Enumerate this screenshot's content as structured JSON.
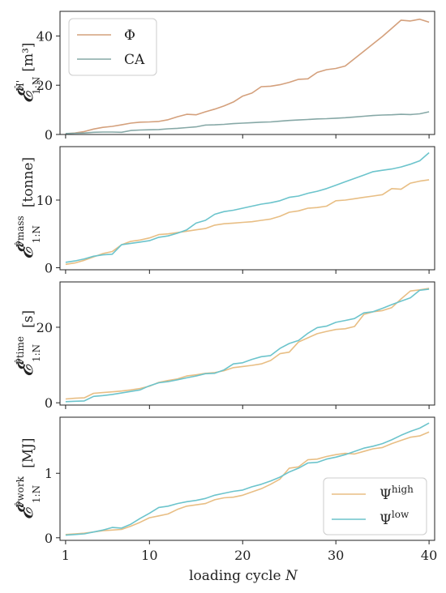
{
  "chart_data": [
    {
      "type": "line",
      "ylabel": "𝓔^{Ĥ'}_{1:N} [m³]",
      "ylabel_symbol": "𝓔",
      "ylabel_superscript": "Ĥ'",
      "ylabel_subscript": "1:N",
      "ylabel_unit": "[m³]",
      "xlabel": "",
      "xlim": [
        0.4,
        40.6
      ],
      "ylim": [
        0,
        50
      ],
      "yticks": [
        0,
        20,
        40
      ],
      "legend_position": "top-left",
      "grid": false,
      "series": [
        {
          "name": "Φ",
          "color": "#d4a07c",
          "x": [
            1,
            2,
            3,
            4,
            5,
            6,
            7,
            8,
            9,
            10,
            11,
            12,
            13,
            14,
            15,
            16,
            17,
            18,
            19,
            20,
            21,
            22,
            23,
            24,
            25,
            26,
            27,
            28,
            29,
            30,
            31,
            32,
            33,
            34,
            35,
            36,
            37,
            38,
            39,
            40
          ],
          "values": [
            0.3,
            0.6,
            1.2,
            2.2,
            2.9,
            3.3,
            3.9,
            4.6,
            5.0,
            5.1,
            5.3,
            6.0,
            7.2,
            8.2,
            8.0,
            9.2,
            10.3,
            11.6,
            13.2,
            15.6,
            16.8,
            19.4,
            19.6,
            20.2,
            21.2,
            22.4,
            22.6,
            25.2,
            26.3,
            26.8,
            27.8,
            30.8,
            33.8,
            36.8,
            39.8,
            43.1,
            46.4,
            46.1,
            46.8,
            45.6
          ]
        },
        {
          "name": "CA",
          "color": "#86a8a6",
          "x": [
            1,
            2,
            3,
            4,
            5,
            6,
            7,
            8,
            9,
            10,
            11,
            12,
            13,
            14,
            15,
            16,
            17,
            18,
            19,
            20,
            21,
            22,
            23,
            24,
            25,
            26,
            27,
            28,
            29,
            30,
            31,
            32,
            33,
            34,
            35,
            36,
            37,
            38,
            39,
            40
          ],
          "values": [
            0.4,
            0.5,
            0.6,
            0.9,
            1.0,
            1.0,
            0.9,
            1.6,
            1.8,
            1.9,
            2.0,
            2.3,
            2.5,
            2.8,
            3.1,
            3.8,
            3.9,
            4.1,
            4.4,
            4.6,
            4.8,
            5.0,
            5.1,
            5.4,
            5.7,
            5.9,
            6.1,
            6.3,
            6.4,
            6.6,
            6.8,
            7.1,
            7.4,
            7.7,
            7.9,
            8.0,
            8.2,
            8.1,
            8.4,
            9.2
          ]
        }
      ]
    },
    {
      "type": "line",
      "ylabel": "𝓔^{P̂mass}_{1:N} [tonne]",
      "ylabel_symbol": "𝓔",
      "ylabel_superscript": "P̂mass",
      "ylabel_subscript": "1:N",
      "ylabel_unit": "[tonne]",
      "xlabel": "",
      "xlim": [
        0.4,
        40.6
      ],
      "ylim": [
        -0.3,
        17.9
      ],
      "yticks": [
        0,
        10
      ],
      "grid": false,
      "series": [
        {
          "name": "Ψ^high",
          "color": "#e8be84",
          "x": [
            1,
            2,
            3,
            4,
            5,
            6,
            7,
            8,
            9,
            10,
            11,
            12,
            13,
            14,
            15,
            16,
            17,
            18,
            19,
            20,
            21,
            22,
            23,
            24,
            25,
            26,
            27,
            28,
            29,
            30,
            31,
            32,
            33,
            34,
            35,
            36,
            37,
            38,
            39,
            40
          ],
          "values": [
            0.5,
            0.7,
            1.1,
            1.6,
            2.1,
            2.4,
            3.4,
            3.9,
            4.1,
            4.4,
            4.9,
            5.0,
            5.2,
            5.4,
            5.6,
            5.8,
            6.3,
            6.5,
            6.6,
            6.7,
            6.8,
            7.0,
            7.2,
            7.6,
            8.2,
            8.4,
            8.8,
            8.9,
            9.1,
            9.9,
            10.0,
            10.2,
            10.4,
            10.6,
            10.8,
            11.7,
            11.6,
            12.5,
            12.8,
            13.0
          ]
        },
        {
          "name": "Ψ^low",
          "color": "#6cc4cc",
          "x": [
            1,
            2,
            3,
            4,
            5,
            6,
            7,
            8,
            9,
            10,
            11,
            12,
            13,
            14,
            15,
            16,
            17,
            18,
            19,
            20,
            21,
            22,
            23,
            24,
            25,
            26,
            27,
            28,
            29,
            30,
            31,
            32,
            33,
            34,
            35,
            36,
            37,
            38,
            39,
            40
          ],
          "values": [
            0.8,
            1.0,
            1.3,
            1.7,
            1.9,
            2.0,
            3.4,
            3.6,
            3.8,
            4.0,
            4.5,
            4.7,
            5.1,
            5.6,
            6.6,
            7.0,
            7.9,
            8.3,
            8.5,
            8.8,
            9.1,
            9.4,
            9.6,
            9.9,
            10.4,
            10.6,
            11.0,
            11.3,
            11.7,
            12.2,
            12.7,
            13.2,
            13.7,
            14.2,
            14.4,
            14.6,
            14.9,
            15.3,
            15.8,
            17.0
          ]
        }
      ]
    },
    {
      "type": "line",
      "ylabel": "𝓔^{P̂time}_{1:N} [s]",
      "ylabel_symbol": "𝓔",
      "ylabel_superscript": "P̂time",
      "ylabel_subscript": "1:N",
      "ylabel_unit": "[s]",
      "xlabel": "",
      "xlim": [
        0.4,
        40.6
      ],
      "ylim": [
        -0.6,
        32.0
      ],
      "yticks": [
        0,
        20
      ],
      "grid": false,
      "series": [
        {
          "name": "Ψ^high",
          "color": "#e8be84",
          "x": [
            1,
            2,
            3,
            4,
            5,
            6,
            7,
            8,
            9,
            10,
            11,
            12,
            13,
            14,
            15,
            16,
            17,
            18,
            19,
            20,
            21,
            22,
            23,
            24,
            25,
            26,
            27,
            28,
            29,
            30,
            31,
            32,
            33,
            34,
            35,
            36,
            37,
            38,
            39,
            40
          ],
          "values": [
            1.0,
            1.2,
            1.3,
            2.5,
            2.7,
            2.9,
            3.1,
            3.4,
            3.8,
            4.4,
            5.4,
            5.9,
            6.3,
            7.1,
            7.4,
            7.8,
            8.0,
            8.5,
            9.3,
            9.6,
            9.9,
            10.3,
            11.2,
            13.0,
            13.4,
            16.1,
            17.2,
            18.3,
            18.9,
            19.4,
            19.6,
            20.2,
            23.4,
            24.1,
            24.4,
            25.2,
            27.5,
            29.6,
            29.9,
            30.3
          ]
        },
        {
          "name": "Ψ^low",
          "color": "#6cc4cc",
          "x": [
            1,
            2,
            3,
            4,
            5,
            6,
            7,
            8,
            9,
            10,
            11,
            12,
            13,
            14,
            15,
            16,
            17,
            18,
            19,
            20,
            21,
            22,
            23,
            24,
            25,
            26,
            27,
            28,
            29,
            30,
            31,
            32,
            33,
            34,
            35,
            36,
            37,
            38,
            39,
            40
          ],
          "values": [
            0.3,
            0.4,
            0.5,
            1.7,
            1.9,
            2.2,
            2.6,
            3.0,
            3.4,
            4.5,
            5.3,
            5.6,
            6.1,
            6.6,
            7.1,
            7.7,
            7.8,
            8.7,
            10.3,
            10.6,
            11.5,
            12.2,
            12.5,
            14.4,
            15.7,
            16.5,
            18.4,
            19.9,
            20.3,
            21.3,
            21.8,
            22.3,
            23.8,
            24.1,
            25.0,
            26.0,
            26.9,
            27.8,
            29.8,
            30.1
          ]
        }
      ]
    },
    {
      "type": "line",
      "ylabel": "𝓔^{P̂work}_{1:N} [MJ]",
      "ylabel_symbol": "𝓔",
      "ylabel_superscript": "P̂work",
      "ylabel_subscript": "1:N",
      "ylabel_unit": "[MJ]",
      "xlabel": "loading cycle N",
      "xlim": [
        0.4,
        40.6
      ],
      "ylim": [
        -0.04,
        1.87
      ],
      "yticks": [
        0,
        1
      ],
      "xticks": [
        1,
        10,
        20,
        30,
        40
      ],
      "legend_position": "bottom-right",
      "grid": false,
      "series": [
        {
          "name": "Ψ^high",
          "color": "#e8be84",
          "x": [
            1,
            2,
            3,
            4,
            5,
            6,
            7,
            8,
            9,
            10,
            11,
            12,
            13,
            14,
            15,
            16,
            17,
            18,
            19,
            20,
            21,
            22,
            23,
            24,
            25,
            26,
            27,
            28,
            29,
            30,
            31,
            32,
            33,
            34,
            35,
            36,
            37,
            38,
            39,
            40
          ],
          "values": [
            0.05,
            0.06,
            0.07,
            0.09,
            0.11,
            0.12,
            0.13,
            0.18,
            0.24,
            0.31,
            0.34,
            0.37,
            0.44,
            0.49,
            0.51,
            0.53,
            0.59,
            0.62,
            0.63,
            0.66,
            0.71,
            0.76,
            0.83,
            0.91,
            1.08,
            1.1,
            1.21,
            1.22,
            1.26,
            1.29,
            1.31,
            1.3,
            1.34,
            1.38,
            1.4,
            1.46,
            1.51,
            1.56,
            1.58,
            1.64
          ]
        },
        {
          "name": "Ψ^low",
          "color": "#6cc4cc",
          "x": [
            1,
            2,
            3,
            4,
            5,
            6,
            7,
            8,
            9,
            10,
            11,
            12,
            13,
            14,
            15,
            16,
            17,
            18,
            19,
            20,
            21,
            22,
            23,
            24,
            25,
            26,
            27,
            28,
            29,
            30,
            31,
            32,
            33,
            34,
            35,
            36,
            37,
            38,
            39,
            40
          ],
          "values": [
            0.04,
            0.05,
            0.06,
            0.09,
            0.12,
            0.16,
            0.15,
            0.21,
            0.3,
            0.38,
            0.47,
            0.49,
            0.53,
            0.56,
            0.58,
            0.61,
            0.66,
            0.69,
            0.72,
            0.74,
            0.79,
            0.83,
            0.88,
            0.94,
            1.02,
            1.08,
            1.16,
            1.17,
            1.22,
            1.25,
            1.29,
            1.34,
            1.39,
            1.42,
            1.46,
            1.52,
            1.59,
            1.65,
            1.7,
            1.78
          ]
        }
      ]
    }
  ],
  "legends": {
    "panel1": [
      {
        "label": "Φ",
        "color": "#d4a07c"
      },
      {
        "label": "CA",
        "color": "#86a8a6"
      }
    ],
    "panel4": [
      {
        "label": "Ψ",
        "sup": "high",
        "color": "#e8be84"
      },
      {
        "label": "Ψ",
        "sup": "low",
        "color": "#6cc4cc"
      }
    ]
  },
  "x_axis": {
    "label_text": "loading cycle",
    "label_var": "N"
  }
}
